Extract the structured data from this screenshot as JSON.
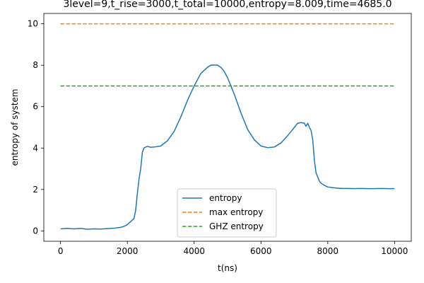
{
  "chart_data": {
    "type": "line",
    "title": "3level=9,t_rise=3000,t_total=10000,entropy=8.009,time=4685.0",
    "xlabel": "t(ns)",
    "ylabel": "entropy of system",
    "xlim": [
      -500,
      10500
    ],
    "ylim": [
      -0.5,
      10.5
    ],
    "xticks": [
      0,
      2000,
      4000,
      6000,
      8000,
      10000
    ],
    "yticks": [
      0,
      2,
      4,
      6,
      8,
      10
    ],
    "xtick_labels": [
      "0",
      "2000",
      "4000",
      "6000",
      "8000",
      "10000"
    ],
    "ytick_labels": [
      "0",
      "2",
      "4",
      "6",
      "8",
      "10"
    ],
    "grid": false,
    "legend_position": "lower-center",
    "series": [
      {
        "name": "entropy",
        "style": "solid",
        "color": "#1f77b4",
        "x": [
          0,
          200,
          400,
          600,
          800,
          1000,
          1200,
          1400,
          1600,
          1800,
          1900,
          2000,
          2100,
          2200,
          2250,
          2300,
          2350,
          2400,
          2450,
          2500,
          2550,
          2600,
          2700,
          2800,
          3000,
          3200,
          3400,
          3600,
          3800,
          4000,
          4200,
          4400,
          4500,
          4600,
          4700,
          4800,
          4900,
          5000,
          5200,
          5400,
          5600,
          5800,
          6000,
          6200,
          6400,
          6600,
          6800,
          7000,
          7100,
          7200,
          7300,
          7350,
          7400,
          7450,
          7500,
          7550,
          7600,
          7650,
          7700,
          7750,
          7800,
          7900,
          8000,
          8200,
          8400,
          8600,
          8800,
          9000,
          9200,
          9400,
          9600,
          9800,
          10000
        ],
        "y": [
          0.1,
          0.12,
          0.1,
          0.12,
          0.08,
          0.1,
          0.09,
          0.11,
          0.13,
          0.17,
          0.22,
          0.3,
          0.45,
          0.6,
          1.0,
          1.8,
          2.5,
          3.0,
          3.8,
          4.0,
          4.05,
          4.08,
          4.04,
          4.05,
          4.1,
          4.35,
          4.8,
          5.5,
          6.3,
          7.0,
          7.6,
          7.9,
          8.0,
          8.01,
          8.0,
          7.9,
          7.7,
          7.4,
          6.6,
          5.7,
          4.9,
          4.4,
          4.1,
          4.02,
          4.05,
          4.25,
          4.6,
          5.0,
          5.2,
          5.23,
          5.2,
          5.05,
          5.2,
          5.0,
          4.85,
          4.4,
          3.4,
          2.8,
          2.6,
          2.4,
          2.3,
          2.2,
          2.12,
          2.08,
          2.05,
          2.05,
          2.04,
          2.05,
          2.04,
          2.04,
          2.05,
          2.04,
          2.04
        ]
      },
      {
        "name": "max entropy",
        "style": "dashed",
        "color": "#ff7f0e",
        "x": [
          0,
          10000
        ],
        "y": [
          10,
          10
        ]
      },
      {
        "name": "GHZ entropy",
        "style": "dashed",
        "color": "#2ca02c",
        "x": [
          0,
          10000
        ],
        "y": [
          7,
          7
        ]
      }
    ]
  }
}
